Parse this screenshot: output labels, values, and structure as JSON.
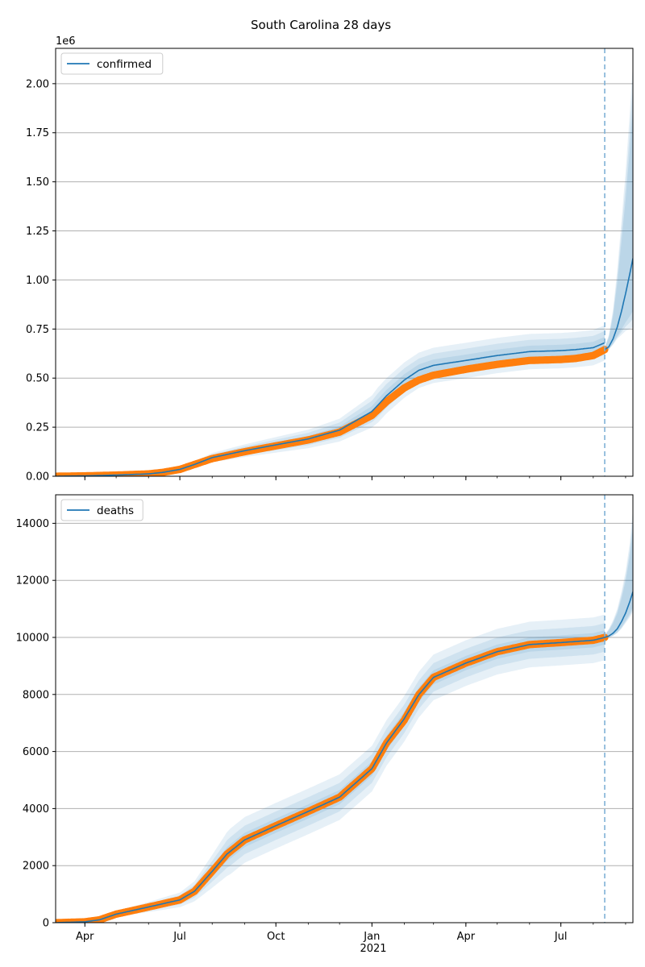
{
  "figure_title": "South Carolina 28 days",
  "colors": {
    "model_line": "#1f77b4",
    "observed": "#ff7f0e",
    "band": "#1f77b4",
    "forecast_marker": "#7fb1d6",
    "grid": "#b0b0b0"
  },
  "x_axis": {
    "tick_labels": [
      "Apr",
      "Jul",
      "Oct",
      "Jan",
      "Apr",
      "Jul"
    ],
    "tick_dates": [
      "2020-04-01",
      "2020-07-01",
      "2020-10-01",
      "2021-01-01",
      "2021-04-01",
      "2021-07-01"
    ],
    "year_label": "2021",
    "range": [
      "2020-03-04",
      "2021-09-08"
    ],
    "forecast_start": "2021-08-12"
  },
  "chart_data": [
    {
      "type": "line",
      "legend": "confirmed",
      "legend_position": "top-left",
      "grid": "horizontal",
      "offset_label": "1e6",
      "ylim": [
        0,
        2.18
      ],
      "y_ticks": [
        "0.00",
        "0.25",
        "0.50",
        "0.75",
        "1.00",
        "1.25",
        "1.50",
        "1.75",
        "2.00"
      ],
      "y_tick_values": [
        0,
        0.25,
        0.5,
        0.75,
        1.0,
        1.25,
        1.5,
        1.75,
        2.0
      ],
      "observed": {
        "x": [
          "2020-03-04",
          "2020-04-01",
          "2020-05-01",
          "2020-06-01",
          "2020-06-15",
          "2020-07-01",
          "2020-07-15",
          "2020-08-01",
          "2020-09-01",
          "2020-10-01",
          "2020-11-01",
          "2020-12-01",
          "2021-01-01",
          "2021-01-15",
          "2021-02-01",
          "2021-02-15",
          "2021-03-01",
          "2021-04-01",
          "2021-05-01",
          "2021-06-01",
          "2021-07-01",
          "2021-07-15",
          "2021-08-01",
          "2021-08-12"
        ],
        "y": [
          0.0,
          0.002,
          0.006,
          0.012,
          0.02,
          0.035,
          0.06,
          0.09,
          0.125,
          0.155,
          0.185,
          0.225,
          0.31,
          0.38,
          0.45,
          0.49,
          0.515,
          0.545,
          0.57,
          0.59,
          0.595,
          0.6,
          0.615,
          0.645
        ]
      },
      "model": {
        "x": [
          "2020-03-04",
          "2020-04-01",
          "2020-05-01",
          "2020-06-01",
          "2020-06-15",
          "2020-07-01",
          "2020-07-15",
          "2020-08-01",
          "2020-09-01",
          "2020-10-01",
          "2020-11-01",
          "2020-12-01",
          "2021-01-01",
          "2021-01-15",
          "2021-02-01",
          "2021-02-15",
          "2021-03-01",
          "2021-04-01",
          "2021-05-01",
          "2021-06-01",
          "2021-07-01",
          "2021-07-15",
          "2021-08-01",
          "2021-08-12"
        ],
        "y": [
          0.0,
          0.002,
          0.006,
          0.012,
          0.02,
          0.035,
          0.06,
          0.095,
          0.13,
          0.16,
          0.19,
          0.235,
          0.33,
          0.41,
          0.49,
          0.54,
          0.565,
          0.59,
          0.615,
          0.635,
          0.64,
          0.645,
          0.655,
          0.68
        ]
      },
      "forecast": {
        "x": [
          "2021-08-12",
          "2021-08-16",
          "2021-08-20",
          "2021-08-24",
          "2021-08-28",
          "2021-09-01",
          "2021-09-05",
          "2021-09-08"
        ],
        "y": [
          0.645,
          0.66,
          0.7,
          0.76,
          0.84,
          0.93,
          1.03,
          1.11
        ],
        "upper": [
          0.66,
          0.72,
          0.85,
          1.05,
          1.3,
          1.55,
          1.85,
          2.1
        ],
        "lower": [
          0.63,
          0.645,
          0.67,
          0.7,
          0.72,
          0.74,
          0.75,
          0.76
        ]
      },
      "band_widths": [
        0.03,
        0.06,
        0.09
      ]
    },
    {
      "type": "line",
      "legend": "deaths",
      "legend_position": "top-left",
      "grid": "horizontal",
      "ylim": [
        0,
        15000
      ],
      "y_ticks": [
        "0",
        "2000",
        "4000",
        "6000",
        "8000",
        "10000",
        "12000",
        "14000"
      ],
      "y_tick_values": [
        0,
        2000,
        4000,
        6000,
        8000,
        10000,
        12000,
        14000
      ],
      "observed": {
        "x": [
          "2020-03-04",
          "2020-04-01",
          "2020-04-15",
          "2020-05-01",
          "2020-06-01",
          "2020-07-01",
          "2020-07-15",
          "2020-08-01",
          "2020-08-15",
          "2020-09-01",
          "2020-10-01",
          "2020-11-01",
          "2020-12-01",
          "2021-01-01",
          "2021-01-15",
          "2021-02-01",
          "2021-02-15",
          "2021-03-01",
          "2021-04-01",
          "2021-05-01",
          "2021-06-01",
          "2021-07-01",
          "2021-08-01",
          "2021-08-12"
        ],
        "y": [
          0,
          30,
          100,
          300,
          550,
          800,
          1100,
          1800,
          2400,
          2900,
          3400,
          3900,
          4400,
          5400,
          6300,
          7100,
          8000,
          8600,
          9100,
          9500,
          9750,
          9820,
          9900,
          10000
        ]
      },
      "model": {
        "x": [
          "2020-03-04",
          "2020-04-01",
          "2020-04-15",
          "2020-05-01",
          "2020-06-01",
          "2020-07-01",
          "2020-07-15",
          "2020-08-01",
          "2020-08-15",
          "2020-09-01",
          "2020-10-01",
          "2020-11-01",
          "2020-12-01",
          "2021-01-01",
          "2021-01-15",
          "2021-02-01",
          "2021-02-15",
          "2021-03-01",
          "2021-04-01",
          "2021-05-01",
          "2021-06-01",
          "2021-07-01",
          "2021-08-01",
          "2021-08-12"
        ],
        "y": [
          0,
          30,
          100,
          300,
          550,
          800,
          1100,
          1800,
          2400,
          2900,
          3400,
          3900,
          4400,
          5400,
          6300,
          7150,
          8000,
          8600,
          9100,
          9500,
          9750,
          9820,
          9900,
          10000
        ]
      },
      "forecast": {
        "x": [
          "2021-08-12",
          "2021-08-16",
          "2021-08-20",
          "2021-08-24",
          "2021-08-28",
          "2021-09-01",
          "2021-09-05",
          "2021-09-08"
        ],
        "y": [
          10000,
          10050,
          10150,
          10300,
          10550,
          10850,
          11250,
          11600
        ],
        "upper": [
          10100,
          10300,
          10600,
          11000,
          11600,
          12300,
          13300,
          14500
        ],
        "lower": [
          9950,
          9990,
          10050,
          10150,
          10300,
          10500,
          10700,
          10900
        ]
      },
      "band_widths": [
        250,
        500,
        800
      ]
    }
  ]
}
